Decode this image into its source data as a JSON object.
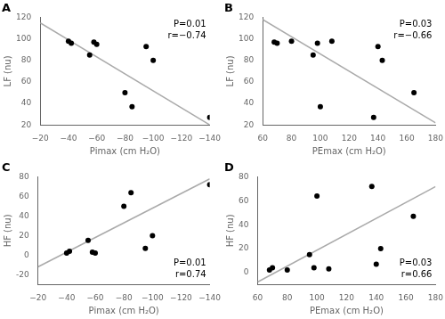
{
  "chart_data": [
    {
      "type": "scatter",
      "title": "A",
      "x_label": "Pimax (cm H₂O)",
      "y_label": "LF (nu)",
      "series": [
        {
          "type": "scatter",
          "color": "#000000",
          "x": [
            -40,
            -42,
            -55,
            -58,
            -60,
            -80,
            -85,
            -95,
            -100,
            -140
          ],
          "values": [
            98,
            96,
            85,
            97,
            95,
            50,
            37,
            93,
            80,
            27
          ]
        },
        {
          "type": "line",
          "color": "#aaaaaa",
          "x": [
            -20,
            -140
          ],
          "values": [
            115,
            20
          ]
        }
      ],
      "xlim": [
        -20,
        -140
      ],
      "xticks": [
        {
          "value": -20,
          "label": "−20"
        },
        {
          "value": -40,
          "label": "−40"
        },
        {
          "value": -60,
          "label": "−60"
        },
        {
          "value": -80,
          "label": "−80"
        },
        {
          "value": -100,
          "label": "−100"
        },
        {
          "value": -120,
          "label": "−120"
        },
        {
          "value": -140,
          "label": "−140"
        }
      ],
      "ylim": [
        20,
        120
      ],
      "yticks": [
        20,
        40,
        60,
        80,
        100,
        120
      ],
      "annotations": [
        "P=0.01",
        "r=−0.74"
      ],
      "grid": false
    },
    {
      "type": "scatter",
      "title": "B",
      "x_label": "PEmax (cm H₂O)",
      "y_label": "LF (nu)",
      "series": [
        {
          "type": "scatter",
          "color": "#000000",
          "x": [
            68,
            70,
            80,
            95,
            98,
            100,
            108,
            137,
            140,
            143,
            165
          ],
          "values": [
            97,
            96,
            98,
            85,
            96,
            37,
            98,
            27,
            93,
            80,
            50
          ]
        },
        {
          "type": "line",
          "color": "#aaaaaa",
          "x": [
            60,
            180
          ],
          "values": [
            118,
            22
          ]
        }
      ],
      "xlim": [
        60,
        180
      ],
      "xticks": [
        60,
        80,
        100,
        120,
        140,
        160,
        180
      ],
      "ylim": [
        20,
        120
      ],
      "yticks": [
        20,
        40,
        60,
        80,
        100,
        120
      ],
      "annotations": [
        "P=0.03",
        "r=−0.66"
      ],
      "grid": false
    },
    {
      "type": "scatter",
      "title": "C",
      "x_label": "Pimax (cm H₂O)",
      "y_label": "HF (nu)",
      "series": [
        {
          "type": "scatter",
          "color": "#000000",
          "x": [
            -40,
            -42,
            -55,
            -58,
            -60,
            -80,
            -85,
            -95,
            -100,
            -140
          ],
          "values": [
            2,
            4,
            15,
            3,
            2,
            50,
            64,
            7,
            20,
            72
          ]
        },
        {
          "type": "line",
          "color": "#aaaaaa",
          "x": [
            -20,
            -140
          ],
          "values": [
            -12,
            78
          ]
        }
      ],
      "xlim": [
        -20,
        -140
      ],
      "xticks": [
        {
          "value": -20,
          "label": "−20"
        },
        {
          "value": -40,
          "label": "−40"
        },
        {
          "value": -60,
          "label": "−60"
        },
        {
          "value": -80,
          "label": "−80"
        },
        {
          "value": -100,
          "label": "−100"
        },
        {
          "value": -120,
          "label": "−120"
        },
        {
          "value": -140,
          "label": "−140"
        }
      ],
      "ylim": [
        -30,
        80
      ],
      "yticks": [
        -20,
        0,
        20,
        40,
        60,
        80
      ],
      "annotations": [
        "P=0.01",
        "r=0.74"
      ],
      "grid": false
    },
    {
      "type": "scatter",
      "title": "D",
      "x_label": "PEmax (cm H₂O)",
      "y_label": "HF (nu)",
      "series": [
        {
          "type": "scatter",
          "color": "#000000",
          "x": [
            68,
            70,
            80,
            95,
            98,
            100,
            108,
            137,
            140,
            143,
            165
          ],
          "values": [
            2,
            4,
            2,
            15,
            4,
            64,
            3,
            72,
            7,
            20,
            47
          ]
        },
        {
          "type": "line",
          "color": "#aaaaaa",
          "x": [
            60,
            180
          ],
          "values": [
            -8,
            72
          ]
        }
      ],
      "xlim": [
        60,
        180
      ],
      "xticks": [
        60,
        80,
        100,
        120,
        140,
        160,
        180
      ],
      "ylim": [
        -10,
        80
      ],
      "yticks": [
        0,
        20,
        40,
        60,
        80
      ],
      "annotations": [
        "P=0.03",
        "r=0.66"
      ],
      "grid": false
    }
  ]
}
